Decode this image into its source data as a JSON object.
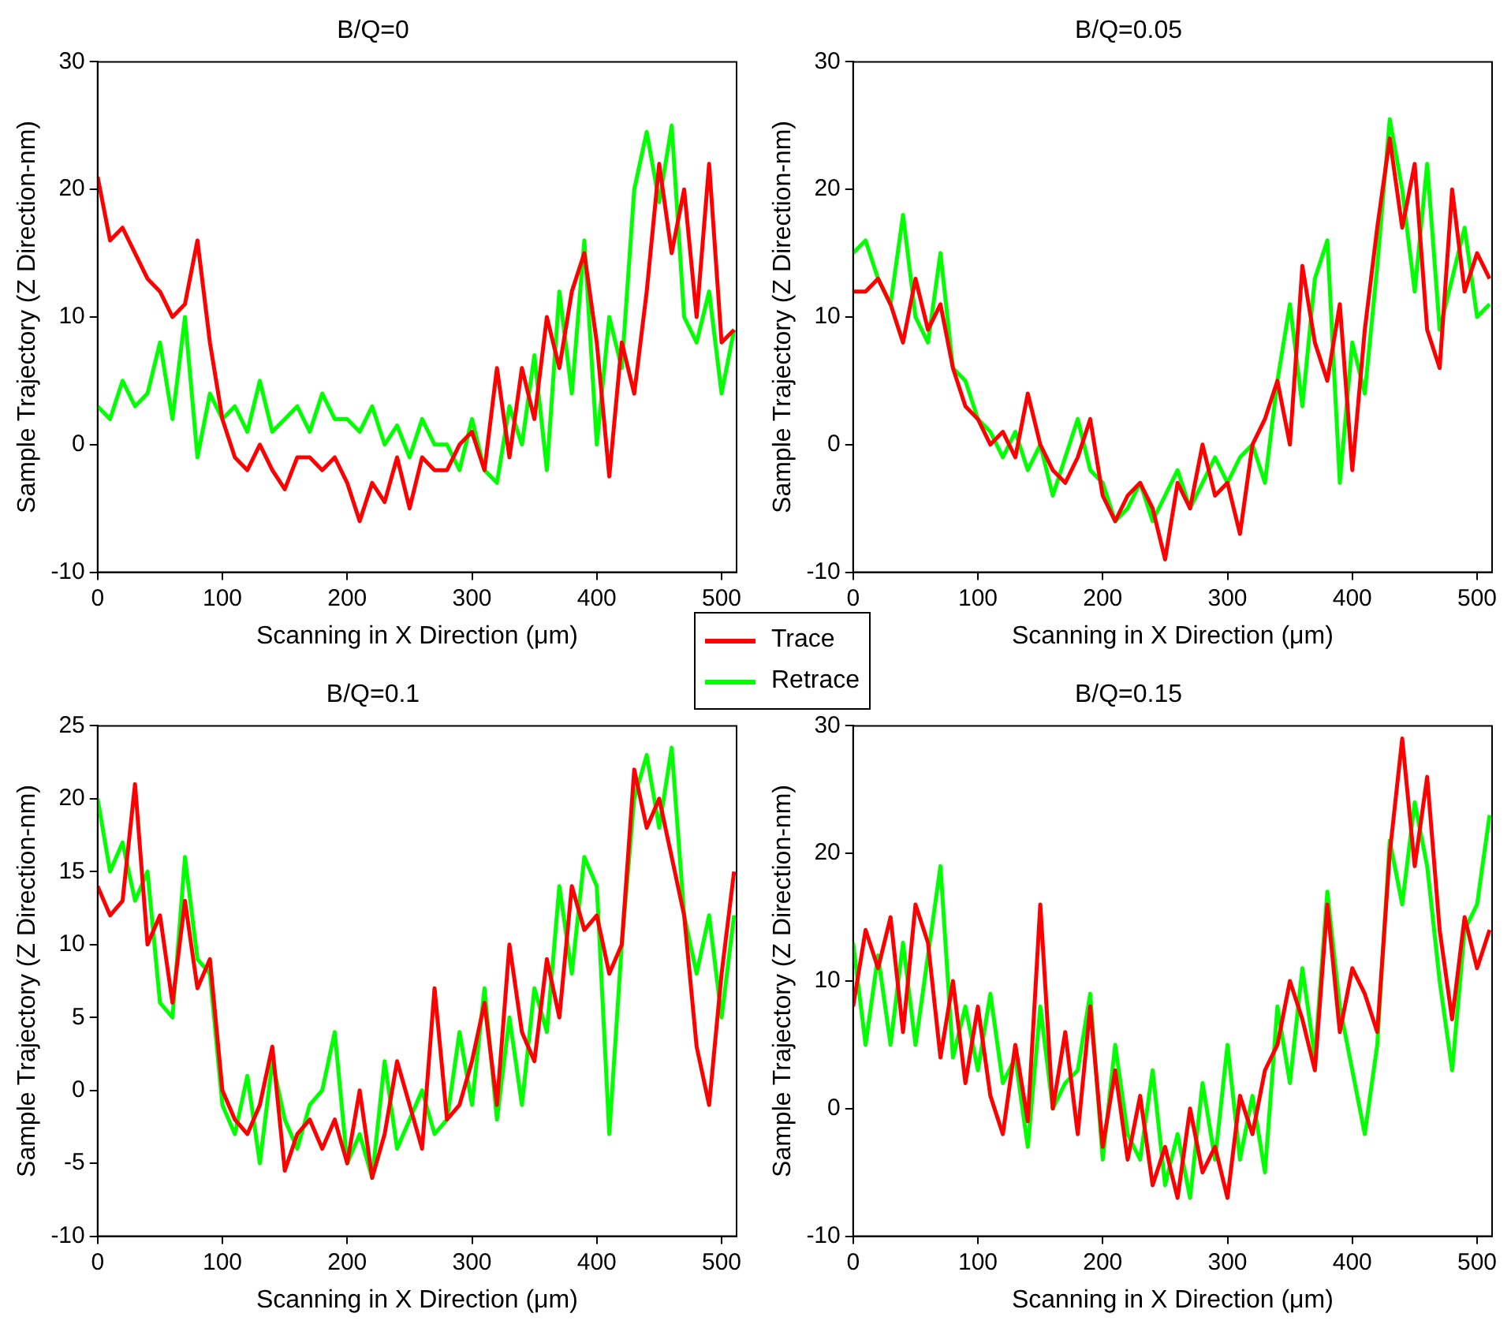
{
  "chart_data": [
    {
      "type": "line",
      "title": "B/Q=0",
      "xlabel": "Scanning in X Direction (μm)",
      "ylabel": "Sample Trajectory (Z Direction-nm)",
      "xlim": [
        0,
        512
      ],
      "xticks": [
        0,
        100,
        200,
        300,
        400,
        500
      ],
      "ylim": [
        -10,
        30
      ],
      "yticks": [
        -10,
        0,
        10,
        20,
        30
      ],
      "grid": false,
      "legend": "bottom right",
      "marker": "none",
      "line_style": "solid",
      "x": [
        0,
        10,
        20,
        30,
        40,
        50,
        60,
        70,
        80,
        90,
        100,
        110,
        120,
        130,
        140,
        150,
        160,
        170,
        180,
        190,
        200,
        210,
        220,
        230,
        240,
        250,
        260,
        270,
        280,
        290,
        300,
        310,
        320,
        330,
        340,
        350,
        360,
        370,
        380,
        390,
        400,
        410,
        420,
        430,
        440,
        450,
        460,
        470,
        480,
        490,
        500,
        510
      ],
      "series": [
        {
          "name": "Trace",
          "color": "#ff0000",
          "values": [
            21,
            16,
            17,
            15,
            13,
            12,
            10,
            11,
            16,
            8,
            2,
            -1,
            -2,
            0,
            -2,
            -3.5,
            -1,
            -1,
            -2,
            -1,
            -3,
            -6,
            -3,
            -4.5,
            -1,
            -5,
            -1,
            -2,
            -2,
            0,
            1,
            -2,
            6,
            -1,
            6,
            2,
            10,
            6,
            12,
            15,
            8,
            -2.5,
            8,
            4,
            12,
            22,
            15,
            20,
            10,
            22,
            8,
            9
          ]
        },
        {
          "name": "Retrace",
          "color": "#00ff00",
          "values": [
            3,
            2,
            5,
            3,
            4,
            8,
            2,
            10,
            -1,
            4,
            2,
            3,
            1,
            5,
            1,
            2,
            3,
            1,
            4,
            2,
            2,
            1,
            3,
            0,
            1.5,
            -1,
            2,
            0,
            0,
            -2,
            2,
            -2,
            -3,
            3,
            0,
            7,
            -2,
            12,
            4,
            16,
            0,
            10,
            6,
            20,
            24.5,
            19,
            25,
            10,
            8,
            12,
            4,
            9
          ]
        }
      ]
    },
    {
      "type": "line",
      "title": "B/Q=0.05",
      "xlabel": "Scanning in X Direction (μm)",
      "ylabel": "Sample Trajectory (Z Direction-nm)",
      "xlim": [
        0,
        512
      ],
      "xticks": [
        0,
        100,
        200,
        300,
        400,
        500
      ],
      "ylim": [
        -10,
        30
      ],
      "yticks": [
        -10,
        0,
        10,
        20,
        30
      ],
      "grid": false,
      "marker": "none",
      "line_style": "solid",
      "x": [
        0,
        10,
        20,
        30,
        40,
        50,
        60,
        70,
        80,
        90,
        100,
        110,
        120,
        130,
        140,
        150,
        160,
        170,
        180,
        190,
        200,
        210,
        220,
        230,
        240,
        250,
        260,
        270,
        280,
        290,
        300,
        310,
        320,
        330,
        340,
        350,
        360,
        370,
        380,
        390,
        400,
        410,
        420,
        430,
        440,
        450,
        460,
        470,
        480,
        490,
        500,
        510
      ],
      "series": [
        {
          "color": "#ff0000",
          "values": [
            12,
            12,
            13,
            11,
            8,
            13,
            9,
            11,
            6,
            3,
            2,
            0,
            1,
            -1,
            4,
            0,
            -2,
            -3,
            -1,
            2,
            -4,
            -6,
            -4,
            -3,
            -5,
            -9,
            -3,
            -5,
            0,
            -4,
            -3,
            -7,
            0,
            2,
            5,
            0,
            14,
            8,
            5,
            11,
            -2,
            9,
            17,
            24,
            17,
            22,
            9,
            6,
            20,
            12,
            15,
            13
          ]
        },
        {
          "color": "#00ff00",
          "values": [
            15,
            16,
            13,
            11,
            18,
            10,
            8,
            15,
            6,
            5,
            2,
            1,
            -1,
            1,
            -2,
            0,
            -4,
            -1,
            2,
            -2,
            -3,
            -6,
            -5,
            -3,
            -6,
            -4,
            -2,
            -5,
            -3,
            -1,
            -3,
            -1,
            0,
            -3,
            5,
            11,
            3,
            13,
            16,
            -3,
            8,
            4,
            14,
            25.5,
            20,
            12,
            22,
            9,
            13,
            17,
            10,
            11
          ]
        }
      ]
    },
    {
      "type": "line",
      "title": "B/Q=0.1",
      "xlabel": "Scanning in X Direction (μm)",
      "ylabel": "Sample Trajectory (Z Direction-nm)",
      "xlim": [
        0,
        512
      ],
      "xticks": [
        0,
        100,
        200,
        300,
        400,
        500
      ],
      "ylim": [
        -10,
        25
      ],
      "yticks": [
        -10,
        -5,
        0,
        5,
        10,
        15,
        20,
        25
      ],
      "grid": false,
      "marker": "none",
      "line_style": "solid",
      "x": [
        0,
        10,
        20,
        30,
        40,
        50,
        60,
        70,
        80,
        90,
        100,
        110,
        120,
        130,
        140,
        150,
        160,
        170,
        180,
        190,
        200,
        210,
        220,
        230,
        240,
        250,
        260,
        270,
        280,
        290,
        300,
        310,
        320,
        330,
        340,
        350,
        360,
        370,
        380,
        390,
        400,
        410,
        420,
        430,
        440,
        450,
        460,
        470,
        480,
        490,
        500,
        510
      ],
      "series": [
        {
          "color": "#ff0000",
          "values": [
            14,
            12,
            13,
            21,
            10,
            12,
            6,
            13,
            7,
            9,
            0,
            -2,
            -3,
            -1,
            3,
            -5.5,
            -3,
            -2,
            -4,
            -2,
            -5,
            0,
            -6,
            -3,
            2,
            -1,
            -4,
            7,
            -2,
            -1,
            2,
            6,
            -1,
            10,
            4,
            2,
            9,
            5,
            14,
            11,
            12,
            8,
            10,
            22,
            18,
            20,
            16,
            12,
            3,
            -1,
            8,
            15
          ]
        },
        {
          "color": "#00ff00",
          "values": [
            20,
            15,
            17,
            13,
            15,
            6,
            5,
            16,
            9,
            8,
            -1,
            -3,
            1,
            -5,
            2,
            -2,
            -4,
            -1,
            0,
            4,
            -5,
            -3,
            -6,
            2,
            -4,
            -2,
            0,
            -3,
            -2,
            4,
            -1,
            7,
            -2,
            5,
            -1,
            7,
            4,
            14,
            8,
            16,
            14,
            -3,
            10,
            20,
            23,
            18,
            23.5,
            12,
            8,
            12,
            5,
            12
          ]
        }
      ]
    },
    {
      "type": "line",
      "title": "B/Q=0.15",
      "xlabel": "Scanning in X Direction (μm)",
      "ylabel": "Sample Trajectory (Z Direction-nm)",
      "xlim": [
        0,
        512
      ],
      "xticks": [
        0,
        100,
        200,
        300,
        400,
        500
      ],
      "ylim": [
        -10,
        30
      ],
      "yticks": [
        -10,
        0,
        10,
        20,
        30
      ],
      "grid": false,
      "marker": "none",
      "line_style": "solid",
      "x": [
        0,
        10,
        20,
        30,
        40,
        50,
        60,
        70,
        80,
        90,
        100,
        110,
        120,
        130,
        140,
        150,
        160,
        170,
        180,
        190,
        200,
        210,
        220,
        230,
        240,
        250,
        260,
        270,
        280,
        290,
        300,
        310,
        320,
        330,
        340,
        350,
        360,
        370,
        380,
        390,
        400,
        410,
        420,
        430,
        440,
        450,
        460,
        470,
        480,
        490,
        500,
        510
      ],
      "series": [
        {
          "color": "#ff0000",
          "values": [
            8,
            14,
            11,
            15,
            6,
            16,
            13,
            4,
            10,
            2,
            8,
            1,
            -2,
            5,
            -1,
            16,
            0,
            6,
            -2,
            8,
            -3,
            3,
            -4,
            1,
            -6,
            -3,
            -7,
            0,
            -5,
            -3,
            -7,
            1,
            -2,
            3,
            5,
            10,
            7,
            3,
            16,
            6,
            11,
            9,
            6,
            20,
            29,
            19,
            26,
            14,
            7,
            15,
            11,
            14
          ]
        },
        {
          "color": "#00ff00",
          "values": [
            13,
            5,
            12,
            5,
            13,
            5,
            12,
            19,
            4,
            8,
            3,
            9,
            2,
            4,
            -3,
            8,
            0,
            2,
            3,
            9,
            -4,
            5,
            -2,
            -4,
            3,
            -6,
            -2,
            -7,
            2,
            -4,
            5,
            -4,
            1,
            -5,
            8,
            2,
            11,
            4,
            17,
            8,
            3,
            -2,
            5,
            21,
            16,
            24,
            19,
            10,
            3,
            14,
            16,
            23
          ]
        }
      ]
    }
  ]
}
